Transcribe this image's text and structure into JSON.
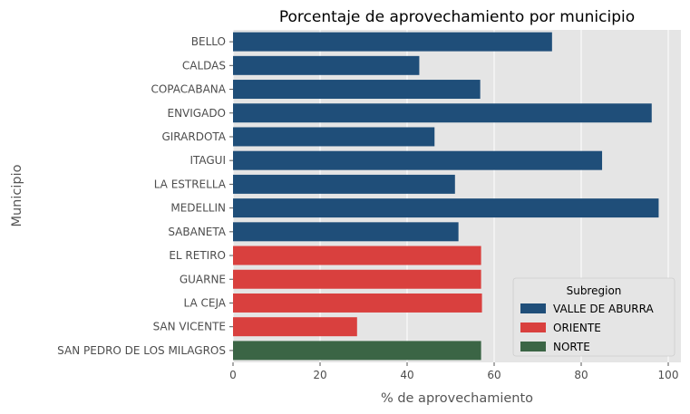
{
  "chart_data": {
    "type": "bar",
    "orientation": "horizontal",
    "title": "Porcentaje de aprovechamiento por municipio",
    "xlabel": "% de aprovechamiento",
    "ylabel": "Municipio",
    "xlim": [
      0,
      102
    ],
    "xticks": [
      0,
      20,
      40,
      60,
      80,
      100
    ],
    "grid": true,
    "legend": {
      "title": "Subregion",
      "position": "lower-right",
      "entries": [
        {
          "name": "VALLE DE ABURRA",
          "color": "#1f4e79"
        },
        {
          "name": "ORIENTE",
          "color": "#d9403e"
        },
        {
          "name": "NORTE",
          "color": "#3b6545"
        }
      ]
    },
    "bars": [
      {
        "category": "BELLO",
        "value": 73.3,
        "group": "VALLE DE ABURRA"
      },
      {
        "category": "CALDAS",
        "value": 42.8,
        "group": "VALLE DE ABURRA"
      },
      {
        "category": "COPACABANA",
        "value": 56.8,
        "group": "VALLE DE ABURRA"
      },
      {
        "category": "ENVIGADO",
        "value": 96.2,
        "group": "VALLE DE ABURRA"
      },
      {
        "category": "GIRARDOTA",
        "value": 46.3,
        "group": "VALLE DE ABURRA"
      },
      {
        "category": "ITAGUI",
        "value": 84.8,
        "group": "VALLE DE ABURRA"
      },
      {
        "category": "LA ESTRELLA",
        "value": 51.0,
        "group": "VALLE DE ABURRA"
      },
      {
        "category": "MEDELLIN",
        "value": 97.8,
        "group": "VALLE DE ABURRA"
      },
      {
        "category": "SABANETA",
        "value": 51.8,
        "group": "VALLE DE ABURRA"
      },
      {
        "category": "EL RETIRO",
        "value": 57.0,
        "group": "ORIENTE"
      },
      {
        "category": "GUARNE",
        "value": 57.0,
        "group": "ORIENTE"
      },
      {
        "category": "LA CEJA",
        "value": 57.2,
        "group": "ORIENTE"
      },
      {
        "category": "SAN VICENTE",
        "value": 28.5,
        "group": "ORIENTE"
      },
      {
        "category": "SAN PEDRO DE LOS MILAGROS",
        "value": 57.0,
        "group": "NORTE"
      }
    ]
  }
}
